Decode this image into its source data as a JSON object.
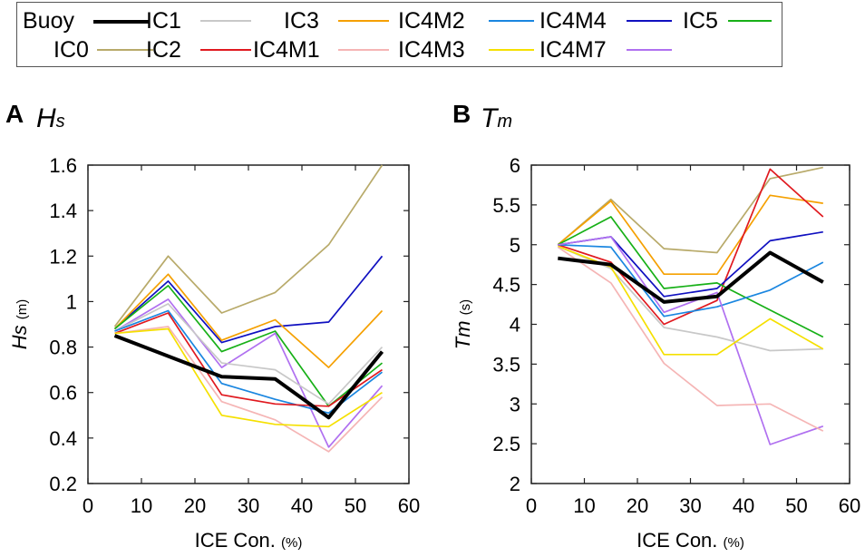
{
  "legend": [
    {
      "name": "Buoy",
      "color": "#000000"
    },
    {
      "name": "IC0",
      "color": "#b8aa6a"
    },
    {
      "name": "IC1",
      "color": "#c8c8c8"
    },
    {
      "name": "IC2",
      "color": "#e0191f"
    },
    {
      "name": "IC3",
      "color": "#f5a000"
    },
    {
      "name": "IC4M1",
      "color": "#f5b5b5"
    },
    {
      "name": "IC4M2",
      "color": "#1a86e0"
    },
    {
      "name": "IC4M3",
      "color": "#f5e000"
    },
    {
      "name": "IC4M4",
      "color": "#1010c0"
    },
    {
      "name": "IC4M7",
      "color": "#b070f0"
    },
    {
      "name": "IC5",
      "color": "#17b017"
    }
  ],
  "panels": {
    "A": {
      "letter": "A",
      "var_main": "H",
      "var_sub": "s",
      "ylabel_main": "Hs",
      "ylabel_unit": "(m)",
      "xlabel_main": "ICE Con.",
      "xlabel_unit": "(%)"
    },
    "B": {
      "letter": "B",
      "var_main": "T",
      "var_sub": "m",
      "ylabel_main": "Tm",
      "ylabel_unit": "(s)",
      "xlabel_main": "ICE Con.",
      "xlabel_unit": "(%)"
    }
  },
  "chart_data": [
    {
      "type": "line",
      "title": "Hs",
      "xlabel": "ICE Con. (%)",
      "ylabel": "Hs (m)",
      "xlim": [
        0,
        60
      ],
      "ylim": [
        0.2,
        1.6
      ],
      "xticks": [
        0,
        10,
        20,
        30,
        40,
        50,
        60
      ],
      "xtick_labels": [
        "0",
        "10",
        "20",
        "30",
        "40",
        "50",
        "60"
      ],
      "yticks": [
        0.2,
        0.4,
        0.6,
        0.8,
        1.0,
        1.2,
        1.4,
        1.6
      ],
      "ytick_labels": [
        "0.2",
        "0.4",
        "0.6",
        "0.8",
        "1",
        "1.2",
        "1.4",
        "1.6"
      ],
      "x": [
        5,
        15,
        25,
        35,
        45,
        55
      ],
      "series": [
        {
          "name": "IC0",
          "values": [
            0.89,
            1.2,
            0.95,
            1.04,
            1.25,
            1.6
          ]
        },
        {
          "name": "IC4M4",
          "values": [
            0.88,
            1.09,
            0.82,
            0.89,
            0.91,
            1.2
          ]
        },
        {
          "name": "IC3",
          "values": [
            0.88,
            1.12,
            0.83,
            0.92,
            0.71,
            0.96
          ]
        },
        {
          "name": "IC5",
          "values": [
            0.88,
            1.07,
            0.78,
            0.87,
            0.54,
            0.73
          ]
        },
        {
          "name": "IC4M7",
          "values": [
            0.87,
            1.01,
            0.71,
            0.86,
            0.36,
            0.63
          ]
        },
        {
          "name": "IC1",
          "values": [
            0.87,
            0.99,
            0.73,
            0.7,
            0.55,
            0.8
          ]
        },
        {
          "name": "IC4M2",
          "values": [
            0.87,
            0.96,
            0.64,
            0.57,
            0.51,
            0.69
          ]
        },
        {
          "name": "IC2",
          "values": [
            0.86,
            0.95,
            0.59,
            0.55,
            0.54,
            0.7
          ]
        },
        {
          "name": "IC4M1",
          "values": [
            0.86,
            0.89,
            0.56,
            0.48,
            0.34,
            0.58
          ]
        },
        {
          "name": "IC4M3",
          "values": [
            0.86,
            0.88,
            0.5,
            0.46,
            0.45,
            0.6
          ]
        },
        {
          "name": "Buoy",
          "values": [
            0.85,
            0.76,
            0.67,
            0.66,
            0.49,
            0.78
          ]
        }
      ]
    },
    {
      "type": "line",
      "title": "Tm",
      "xlabel": "ICE Con. (%)",
      "ylabel": "Tm (s)",
      "xlim": [
        0,
        60
      ],
      "ylim": [
        2,
        6
      ],
      "xticks": [
        0,
        10,
        20,
        30,
        40,
        50,
        60
      ],
      "xtick_labels": [
        "0",
        "10",
        "20",
        "30",
        "40",
        "50",
        "60"
      ],
      "yticks": [
        2,
        2.5,
        3,
        3.5,
        4,
        4.5,
        5,
        5.5,
        6
      ],
      "ytick_labels": [
        "2",
        "2.5",
        "3",
        "3.5",
        "4",
        "4.5",
        "5",
        "5.5",
        "6"
      ],
      "x": [
        5,
        15,
        25,
        35,
        45,
        55
      ],
      "series": [
        {
          "name": "IC0",
          "values": [
            5.0,
            5.57,
            4.95,
            4.9,
            5.83,
            5.97
          ]
        },
        {
          "name": "IC3",
          "values": [
            5.0,
            5.55,
            4.63,
            4.63,
            5.62,
            5.52
          ]
        },
        {
          "name": "IC2",
          "values": [
            5.0,
            4.78,
            4.0,
            4.3,
            5.95,
            5.35
          ]
        },
        {
          "name": "IC4M4",
          "values": [
            5.0,
            5.1,
            4.35,
            4.45,
            5.05,
            5.16
          ]
        },
        {
          "name": "IC5",
          "values": [
            5.0,
            5.35,
            4.45,
            4.52,
            4.18,
            3.84
          ]
        },
        {
          "name": "IC4M2",
          "values": [
            5.0,
            4.97,
            4.1,
            4.22,
            4.43,
            4.78
          ]
        },
        {
          "name": "IC4M7",
          "values": [
            5.0,
            5.1,
            4.15,
            4.4,
            2.49,
            2.72
          ]
        },
        {
          "name": "IC1",
          "values": [
            4.98,
            4.7,
            3.96,
            3.84,
            3.67,
            3.69
          ]
        },
        {
          "name": "IC4M3",
          "values": [
            4.98,
            4.72,
            3.62,
            3.62,
            4.07,
            3.69
          ]
        },
        {
          "name": "IC4M1",
          "values": [
            4.97,
            4.52,
            3.51,
            2.98,
            3.0,
            2.66
          ]
        },
        {
          "name": "Buoy",
          "values": [
            4.83,
            4.75,
            4.28,
            4.35,
            4.9,
            4.53
          ]
        }
      ]
    }
  ]
}
